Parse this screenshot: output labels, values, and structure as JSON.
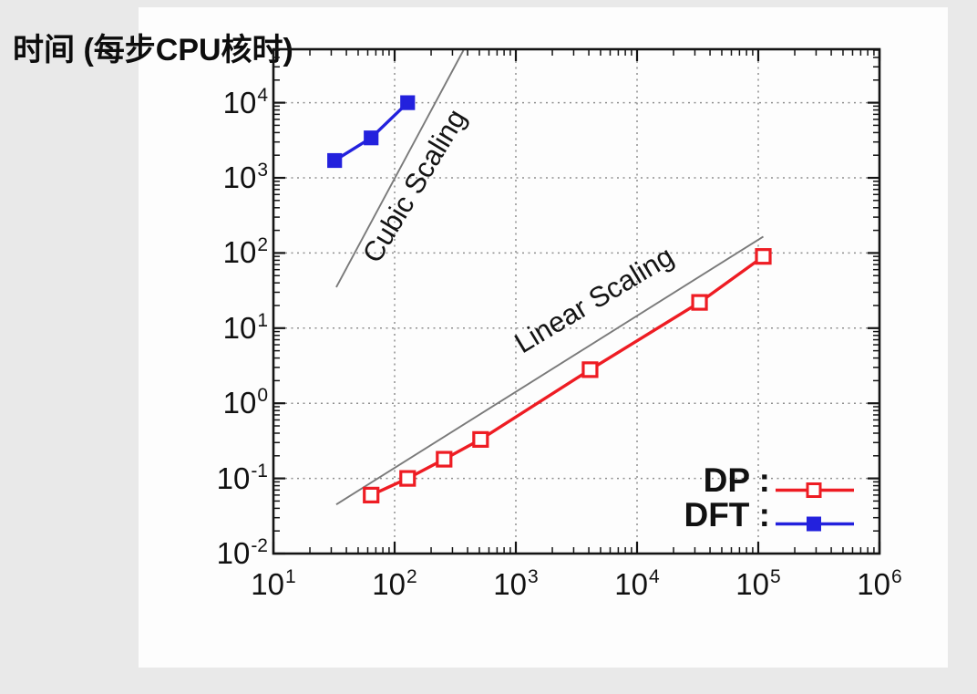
{
  "page": {
    "background_color": "#e9e9e9",
    "panel_color": "#fdfdfd",
    "axis_title": "时间 (每步CPU核时)"
  },
  "chart_data": {
    "type": "line",
    "title": "时间 (每步CPU核时)",
    "x_axis": {
      "scale": "log10",
      "min": 10,
      "max": 1000000,
      "tick_exponents": [
        1,
        2,
        3,
        4,
        5,
        6
      ],
      "grid_exponents": [
        2,
        3,
        4,
        5
      ]
    },
    "y_axis": {
      "scale": "log10",
      "min": 0.01,
      "max": 50000,
      "tick_exponents": [
        4,
        3,
        2,
        1,
        0,
        -1,
        -2
      ],
      "grid_exponents": [
        -1,
        0,
        1,
        2,
        3,
        4
      ]
    },
    "grid": "dotted",
    "axis_color": "#141414",
    "grid_color": "#8f8f8f",
    "series": [
      {
        "name": "DP",
        "legend_label": "DP :",
        "color": "#ee1c23",
        "marker": "open-square",
        "x": [
          64,
          128,
          256,
          512,
          4096,
          32768,
          110000
        ],
        "y": [
          0.06,
          0.1,
          0.18,
          0.33,
          2.8,
          22,
          90
        ]
      },
      {
        "name": "DFT",
        "legend_label": "DFT :",
        "color": "#2321dd",
        "marker": "filled-square",
        "x": [
          32,
          64,
          128
        ],
        "y": [
          1700,
          3400,
          10000
        ]
      }
    ],
    "reference_lines": [
      {
        "label": "Cubic Scaling",
        "color": "#7a7a7a",
        "x": [
          33,
          370
        ],
        "y": [
          35,
          50000
        ]
      },
      {
        "label": "Linear Scaling",
        "color": "#7a7a7a",
        "x": [
          33,
          110000
        ],
        "y": [
          0.045,
          165
        ]
      }
    ],
    "legend_position": "bottom-right"
  }
}
